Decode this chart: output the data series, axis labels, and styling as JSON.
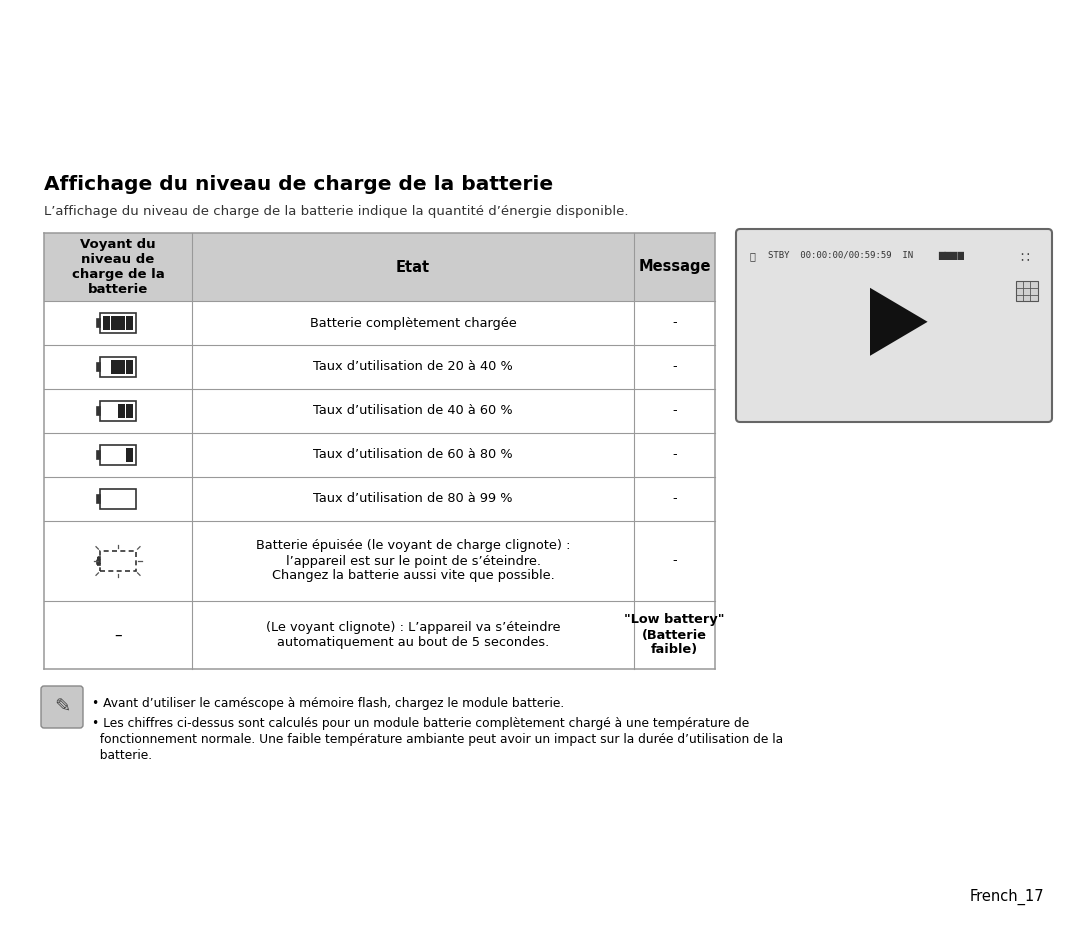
{
  "title": "Affichage du niveau de charge de la batterie",
  "subtitle": "L’affichage du niveau de charge de la batterie indique la quantité d’énergie disponible.",
  "col_headers": [
    "Voyant du\nniveau de\ncharge de la\nbatterie",
    "Etat",
    "Message"
  ],
  "rows": [
    {
      "etat": "Batterie complètement chargée",
      "message": "-",
      "battery_level": 4
    },
    {
      "etat": "Taux d’utilisation de 20 à 40 %",
      "message": "-",
      "battery_level": 3
    },
    {
      "etat": "Taux d’utilisation de 40 à 60 %",
      "message": "-",
      "battery_level": 2
    },
    {
      "etat": "Taux d’utilisation de 60 à 80 %",
      "message": "-",
      "battery_level": 1
    },
    {
      "etat": "Taux d’utilisation de 80 à 99 %",
      "message": "-",
      "battery_level": 0
    },
    {
      "etat": "Batterie épuisée (le voyant de charge clignote) :\nl’appareil est sur le point de s’éteindre.\nChangez la batterie aussi vite que possible.",
      "message": "-",
      "battery_level": -1
    },
    {
      "etat": "(Le voyant clignote) : L’appareil va s’éteindre\nautomatiquement au bout de 5 secondes.",
      "message": "\"Low battery\"\n(Batterie\nfaible)",
      "battery_level": -2
    }
  ],
  "note_line1": "Avant d’utiliser le caméscope à mémoire flash, chargez le module batterie.",
  "note_line2": "Les chiffres ci-dessus sont calculés pour un module batterie complètement chargé à une température de",
  "note_line3": "fonctionnement normale. Une faible température ambiante peut avoir un impact sur la durée d’utilisation de la",
  "note_line4": "batterie.",
  "footer": "French_17",
  "bg_color": "#ffffff",
  "header_bg": "#cccccc",
  "border_color": "#999999",
  "text_color": "#000000"
}
